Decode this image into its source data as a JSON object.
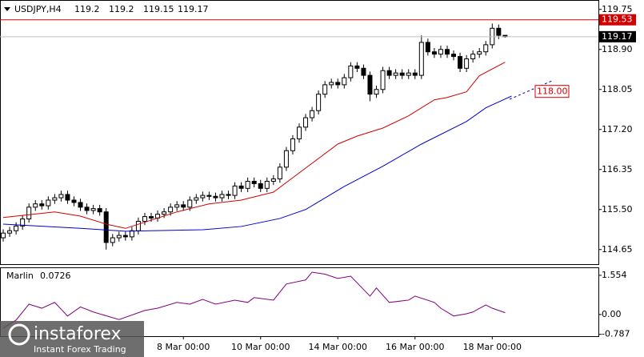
{
  "chart_data": [
    {
      "type": "candlestick",
      "title": "USDJPY,H4",
      "xlim": [
        -0.5,
        92.5
      ],
      "ylim": [
        114.34,
        119.95
      ],
      "yticks": [
        119.75,
        {
          "value": 118.9,
          "label": "118.90"
        },
        118.05,
        {
          "value": 117.2,
          "label": "117.20"
        },
        116.35,
        {
          "value": 115.5,
          "label": "115.50"
        },
        114.65
      ],
      "ohlc": {
        "open": [
          114.9,
          115.0,
          115.05,
          115.15,
          115.3,
          115.55,
          115.62,
          115.58,
          115.7,
          115.75,
          115.82,
          115.7,
          115.65,
          115.55,
          115.48,
          115.52,
          115.45,
          114.8,
          114.9,
          114.95,
          114.92,
          115.05,
          115.25,
          115.35,
          115.32,
          115.4,
          115.45,
          115.55,
          115.6,
          115.55,
          115.7,
          115.75,
          115.8,
          115.78,
          115.75,
          115.82,
          115.8,
          116.0,
          115.95,
          116.1,
          116.05,
          115.95,
          116.1,
          116.15,
          116.4,
          116.75,
          117.0,
          117.25,
          117.45,
          117.6,
          117.95,
          118.15,
          118.2,
          118.15,
          118.3,
          118.55,
          118.5,
          118.35,
          117.95,
          118.05,
          118.45,
          118.35,
          118.4,
          118.35,
          118.4,
          118.35,
          119.05,
          118.85,
          118.8,
          118.9,
          118.8,
          118.75,
          118.5,
          118.7,
          118.8,
          118.85,
          119.0,
          119.35,
          119.2
        ],
        "high": [
          115.08,
          115.13,
          115.23,
          115.38,
          115.63,
          115.7,
          115.7,
          115.78,
          115.83,
          115.9,
          115.9,
          115.78,
          115.73,
          115.63,
          115.6,
          115.6,
          115.53,
          114.98,
          115.03,
          115.03,
          115.13,
          115.33,
          115.43,
          115.43,
          115.48,
          115.53,
          115.63,
          115.68,
          115.68,
          115.78,
          115.83,
          115.88,
          115.88,
          115.86,
          115.9,
          115.9,
          116.08,
          116.08,
          116.18,
          116.18,
          116.13,
          116.18,
          116.23,
          116.48,
          116.83,
          117.08,
          117.33,
          117.53,
          117.68,
          118.03,
          118.23,
          118.28,
          118.28,
          118.38,
          118.63,
          118.63,
          118.58,
          118.43,
          118.13,
          118.53,
          118.53,
          118.48,
          118.48,
          118.48,
          118.48,
          119.2,
          119.13,
          118.93,
          118.98,
          118.98,
          118.88,
          118.83,
          118.78,
          118.88,
          118.93,
          119.08,
          119.45,
          119.43,
          119.2
        ],
        "low": [
          114.82,
          114.92,
          114.97,
          115.07,
          115.22,
          115.47,
          115.5,
          115.5,
          115.62,
          115.67,
          115.62,
          115.57,
          115.47,
          115.4,
          115.4,
          115.37,
          114.65,
          114.72,
          114.82,
          114.84,
          114.84,
          114.97,
          115.17,
          115.24,
          115.24,
          115.32,
          115.37,
          115.47,
          115.47,
          115.47,
          115.62,
          115.67,
          115.7,
          115.67,
          115.67,
          115.72,
          115.72,
          115.87,
          115.87,
          115.97,
          115.87,
          115.87,
          116.02,
          116.07,
          116.32,
          116.67,
          116.92,
          117.17,
          117.37,
          117.52,
          117.87,
          118.07,
          118.07,
          118.07,
          118.22,
          118.42,
          118.27,
          117.8,
          117.87,
          117.97,
          118.27,
          118.27,
          118.27,
          118.27,
          118.27,
          118.27,
          118.77,
          118.72,
          118.72,
          118.72,
          118.67,
          118.42,
          118.42,
          118.62,
          118.72,
          118.77,
          118.92,
          119.12,
          119.15
        ],
        "close": [
          115.0,
          115.05,
          115.15,
          115.3,
          115.55,
          115.62,
          115.58,
          115.7,
          115.75,
          115.82,
          115.7,
          115.65,
          115.55,
          115.48,
          115.52,
          115.45,
          114.8,
          114.9,
          114.95,
          114.92,
          115.05,
          115.25,
          115.35,
          115.32,
          115.4,
          115.45,
          115.55,
          115.6,
          115.55,
          115.7,
          115.75,
          115.8,
          115.78,
          115.75,
          115.82,
          115.8,
          116.0,
          115.95,
          116.1,
          116.05,
          115.95,
          116.1,
          116.15,
          116.4,
          116.75,
          117.0,
          117.25,
          117.45,
          117.6,
          117.95,
          118.15,
          118.2,
          118.15,
          118.3,
          118.55,
          118.5,
          118.35,
          117.95,
          118.05,
          118.45,
          118.35,
          118.4,
          118.35,
          118.4,
          118.35,
          119.05,
          118.85,
          118.8,
          118.9,
          118.8,
          118.75,
          118.5,
          118.7,
          118.8,
          118.85,
          119.0,
          119.35,
          119.2,
          119.17
        ]
      },
      "series": [
        {
          "color": "#d00000",
          "x": [
            0,
            8,
            12,
            16,
            19,
            27,
            32,
            37,
            42,
            47,
            52,
            55,
            59,
            63,
            67,
            69,
            72,
            74,
            78
          ],
          "values": [
            115.33,
            115.45,
            115.36,
            115.19,
            115.1,
            115.45,
            115.62,
            115.7,
            115.87,
            116.38,
            116.89,
            117.06,
            117.23,
            117.49,
            117.83,
            117.88,
            118.0,
            118.34,
            118.63
          ]
        },
        {
          "color": "#0000d0",
          "x": [
            0,
            12,
            19,
            31,
            37,
            43,
            47,
            53,
            59,
            65,
            72,
            75,
            79
          ],
          "values": [
            115.19,
            115.1,
            115.04,
            115.07,
            115.14,
            115.31,
            115.5,
            115.99,
            116.42,
            116.89,
            117.37,
            117.66,
            117.91
          ]
        }
      ],
      "levels": [
        {
          "value": 119.53,
          "color": "#d00000"
        }
      ],
      "annotations": [
        {
          "value": 118,
          "label": "118.00"
        }
      ]
    },
    {
      "type": "line",
      "name": "Marlin",
      "color": "#800080",
      "xlim": [
        -0.5,
        92.5
      ],
      "ylim": [
        -0.86,
        1.87
      ],
      "yticks": [
        1.554,
        {
          "value": 0,
          "label": "0.00"
        },
        -0.787
      ],
      "xticks": [
        {
          "value": 28,
          "label": "8 Mar 00:00"
        },
        {
          "value": 40,
          "label": "10 Mar 00:00"
        },
        {
          "value": 52,
          "label": "14 Mar 00:00"
        },
        {
          "value": 64,
          "label": "16 Mar 00:00"
        },
        {
          "value": 76,
          "label": "18 Mar 00:00"
        }
      ],
      "x": [
        0,
        2,
        4,
        6,
        8,
        10,
        12,
        14,
        18,
        22,
        24,
        27,
        29,
        31,
        33,
        36,
        38,
        39,
        42,
        44,
        47,
        48,
        50,
        52,
        54,
        57,
        58,
        60,
        63,
        64,
        67,
        68,
        70,
        72,
        73,
        75,
        76,
        78
      ],
      "values": [
        -0.54,
        -0.22,
        0.41,
        0.25,
        0.48,
        -0.06,
        0.3,
        0.1,
        -0.2,
        0.16,
        0.25,
        0.48,
        0.41,
        0.6,
        0.41,
        0.57,
        0.48,
        0.67,
        0.57,
        1.21,
        1.37,
        1.68,
        1.6,
        1.43,
        1.52,
        0.73,
        1.05,
        0.48,
        0.57,
        0.73,
        0.48,
        0.25,
        -0.06,
        0.03,
        0.1,
        0.38,
        0.25,
        0.0726
      ]
    }
  ],
  "watermark": {
    "brand": "instaforex",
    "tagline": "Instant Forex Trading"
  }
}
